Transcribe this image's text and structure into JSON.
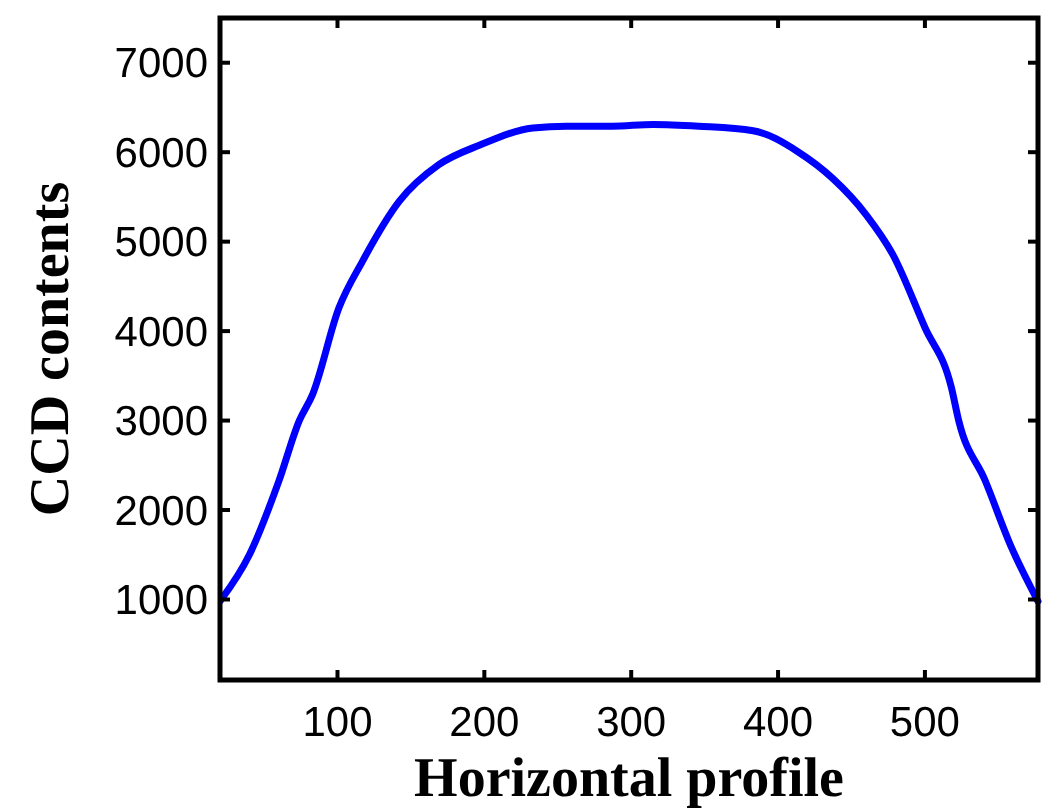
{
  "chart_data": {
    "type": "line",
    "xlabel": "Horizontal profile",
    "ylabel": "CCD contents",
    "xlim": [
      20,
      577
    ],
    "ylim": [
      100,
      7500
    ],
    "xticks": [
      100,
      200,
      300,
      400,
      500
    ],
    "yticks": [
      1000,
      2000,
      3000,
      4000,
      5000,
      6000,
      7000
    ],
    "grid": false,
    "line_style": "solid",
    "series": [
      {
        "color": "#0000ff",
        "x": [
          20,
          40,
          60,
          74,
          83,
          101,
          117,
          142,
          169,
          197,
          233,
          256,
          287,
          315,
          346,
          383,
          414,
          437,
          460,
          478,
          500,
          518,
          523,
          541,
          559,
          577
        ],
        "values": [
          980,
          1500,
          2320,
          3000,
          3290,
          4260,
          4780,
          5450,
          5860,
          6080,
          6270,
          6290,
          6290,
          6310,
          6290,
          6240,
          6000,
          5710,
          5300,
          4860,
          4040,
          3370,
          3000,
          2330,
          1580,
          980
        ]
      }
    ]
  }
}
